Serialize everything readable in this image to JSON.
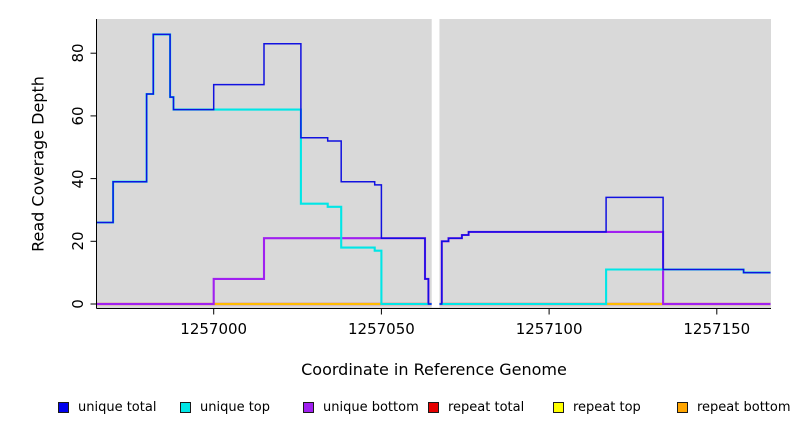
{
  "figure": {
    "background": "#ffffff",
    "panel_background": "#d9d9d9",
    "axis_color": "#000000"
  },
  "chart_data": {
    "type": "line",
    "line_style": "step",
    "title": "",
    "xlabel": "Coordinate in Reference Genome",
    "ylabel": "Read Coverage Depth",
    "xlim": [
      1256965,
      1257166
    ],
    "ylim": [
      0,
      91
    ],
    "x_ticks": [
      1257000,
      1257050,
      1257100,
      1257150
    ],
    "y_ticks": [
      0,
      20,
      40,
      60,
      80
    ],
    "grid": false,
    "legend_position": "bottom",
    "gap_band": {
      "x_from": 1257065,
      "x_to": 1257067.3,
      "color": "#ffffff",
      "note": "white masked vertical band across plot"
    },
    "series": [
      {
        "name": "unique total",
        "color": "#1111e0",
        "points": [
          [
            1256965,
            26
          ],
          [
            1256970,
            39
          ],
          [
            1256980,
            67
          ],
          [
            1256982,
            86
          ],
          [
            1256987,
            66
          ],
          [
            1256988,
            62
          ],
          [
            1257000,
            70
          ],
          [
            1257015,
            83
          ],
          [
            1257026,
            53
          ],
          [
            1257034,
            52
          ],
          [
            1257038,
            39
          ],
          [
            1257048,
            38
          ],
          [
            1257050,
            21
          ],
          [
            1257063,
            8
          ],
          [
            1257064,
            0
          ],
          [
            1257068,
            20
          ],
          [
            1257070,
            21
          ],
          [
            1257074,
            22
          ],
          [
            1257076,
            23
          ],
          [
            1257117,
            34
          ],
          [
            1257134,
            11
          ],
          [
            1257158,
            10
          ],
          [
            1257166,
            10
          ]
        ]
      },
      {
        "name": "unique top",
        "color": "#00e6e6",
        "points": [
          [
            1256965,
            26
          ],
          [
            1256970,
            39
          ],
          [
            1256980,
            67
          ],
          [
            1256982,
            86
          ],
          [
            1256987,
            66
          ],
          [
            1256988,
            62
          ],
          [
            1257026,
            32
          ],
          [
            1257034,
            31
          ],
          [
            1257038,
            18
          ],
          [
            1257048,
            17
          ],
          [
            1257050,
            0
          ],
          [
            1257117,
            11
          ],
          [
            1257158,
            10
          ],
          [
            1257166,
            10
          ]
        ]
      },
      {
        "name": "unique bottom",
        "color": "#a020f0",
        "points": [
          [
            1256965,
            0
          ],
          [
            1257000,
            8
          ],
          [
            1257015,
            21
          ],
          [
            1257063,
            8
          ],
          [
            1257064,
            0
          ],
          [
            1257068,
            20
          ],
          [
            1257070,
            21
          ],
          [
            1257074,
            22
          ],
          [
            1257076,
            23
          ],
          [
            1257134,
            0
          ],
          [
            1257166,
            0
          ]
        ]
      },
      {
        "name": "repeat total",
        "color": "#e60000",
        "points": [
          [
            1256965,
            0
          ],
          [
            1257166,
            0
          ]
        ]
      },
      {
        "name": "repeat top",
        "color": "#ffff00",
        "points": [
          [
            1256965,
            0
          ],
          [
            1257166,
            0
          ]
        ]
      },
      {
        "name": "repeat bottom",
        "color": "#ffa500",
        "points": [
          [
            1256965,
            0
          ],
          [
            1257166,
            0
          ]
        ]
      }
    ]
  },
  "legend": {
    "items": [
      {
        "label": "unique total",
        "color": "#0000ee"
      },
      {
        "label": "unique top",
        "color": "#00e6e6"
      },
      {
        "label": "unique bottom",
        "color": "#a020f0"
      },
      {
        "label": "repeat total",
        "color": "#e60000"
      },
      {
        "label": "repeat top",
        "color": "#ffff00"
      },
      {
        "label": "repeat bottom",
        "color": "#ffa500"
      }
    ]
  }
}
